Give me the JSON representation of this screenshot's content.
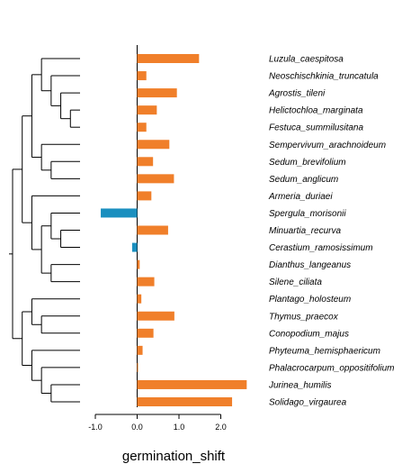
{
  "chart_data": {
    "type": "bar",
    "orientation": "horizontal",
    "xlabel": "germination_shift",
    "xlim": [
      -1.0,
      2.5
    ],
    "xticks": [
      -1.0,
      0.0,
      1.0,
      2.0
    ],
    "xtick_labels": [
      "-1.0",
      "0.0",
      "1.0",
      "2.0"
    ],
    "zero_line": true,
    "grid": false,
    "legend": "none",
    "colors": {
      "positive": "#F07F2A",
      "negative": "#1A8FBF"
    },
    "categories": [
      "Luzula_caespitosa",
      "Neoschischkinia_truncatula",
      "Agrostis_tileni",
      "Helictochloa_marginata",
      "Festuca_summilusitana",
      "Sempervivum_arachnoideum",
      "Sedum_brevifolium",
      "Sedum_anglicum",
      "Armeria_duriaei",
      "Spergula_morisonii",
      "Minuartia_recurva",
      "Cerastium_ramosissimum",
      "Dianthus_langeanus",
      "Silene_ciliata",
      "Plantago_holosteum",
      "Thymus_praecox",
      "Conopodium_majus",
      "Phyteuma_hemisphaericum",
      "Phalacrocarpum_oppositifolium",
      "Jurinea_humilis",
      "Solidago_virgaurea"
    ],
    "values": [
      1.48,
      0.22,
      0.95,
      0.47,
      0.22,
      0.77,
      0.38,
      0.88,
      0.34,
      -0.87,
      0.74,
      -0.12,
      0.06,
      0.41,
      0.1,
      0.89,
      0.39,
      0.13,
      0.01,
      2.62,
      2.27
    ],
    "tree": {
      "children": [
        {
          "children": [
            {
              "children": [
                {
                  "children": [
                    {
                      "leaf": 0
                    },
                    {
                      "children": [
                        {
                          "leaf": 1
                        },
                        {
                          "children": [
                            {
                              "leaf": 2
                            },
                            {
                              "children": [
                                {
                                  "leaf": 3
                                },
                                {
                                  "leaf": 4
                                }
                              ]
                            }
                          ]
                        }
                      ]
                    }
                  ]
                },
                {
                  "children": [
                    {
                      "leaf": 5
                    },
                    {
                      "children": [
                        {
                          "leaf": 6
                        },
                        {
                          "leaf": 7
                        }
                      ]
                    }
                  ]
                }
              ]
            },
            {
              "children": [
                {
                  "leaf": 8
                },
                {
                  "children": [
                    {
                      "children": [
                        {
                          "leaf": 9
                        },
                        {
                          "children": [
                            {
                              "leaf": 10
                            },
                            {
                              "leaf": 11
                            }
                          ]
                        }
                      ]
                    },
                    {
                      "children": [
                        {
                          "leaf": 12
                        },
                        {
                          "leaf": 13
                        }
                      ]
                    }
                  ]
                }
              ]
            }
          ]
        },
        {
          "children": [
            {
              "children": [
                {
                  "leaf": 14
                },
                {
                  "children": [
                    {
                      "leaf": 15
                    },
                    {
                      "leaf": 16
                    }
                  ]
                }
              ]
            },
            {
              "children": [
                {
                  "leaf": 17
                },
                {
                  "children": [
                    {
                      "leaf": 18
                    },
                    {
                      "children": [
                        {
                          "leaf": 19
                        },
                        {
                          "leaf": 20
                        }
                      ]
                    }
                  ]
                }
              ]
            }
          ]
        }
      ]
    }
  }
}
